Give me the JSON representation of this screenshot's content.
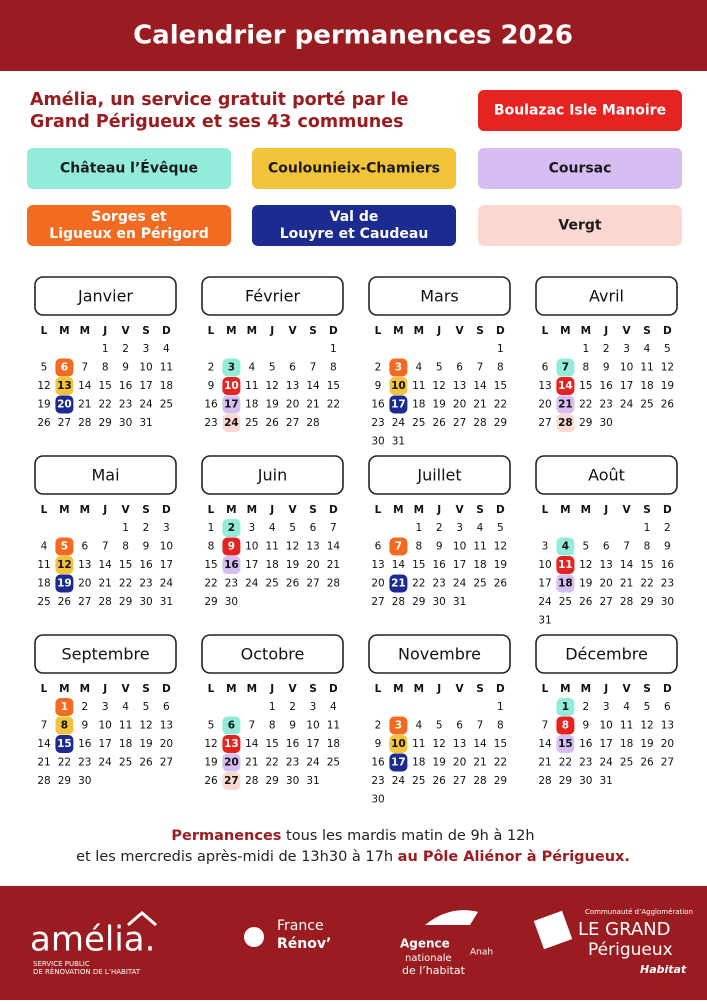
{
  "header": {
    "title": "Calendrier permanences 2026"
  },
  "intro": {
    "lines": [
      "Amélia, un service gratuit porté par le",
      "Grand Périgueux et ses 43 communes"
    ]
  },
  "legend": [
    {
      "lines": [
        "Boulazac Isle Manoire"
      ],
      "color": "#e52421",
      "text_color": "#ffffff"
    },
    {
      "lines": [
        "Château l’Évêque"
      ],
      "color": "#93ecd9",
      "text_color": "#1a1a1a"
    },
    {
      "lines": [
        "Coulounieix-Chamiers"
      ],
      "color": "#f2c43c",
      "text_color": "#1a1a1a"
    },
    {
      "lines": [
        "Coursac"
      ],
      "color": "#d6bdf2",
      "text_color": "#1a1a1a"
    },
    {
      "lines": [
        "Sorges et",
        "Ligueux en Périgord"
      ],
      "color": "#f36b21",
      "text_color": "#ffffff"
    },
    {
      "lines": [
        "Val de",
        "Louyre et Caudeau"
      ],
      "color": "#1b2b8f",
      "text_color": "#ffffff"
    },
    {
      "lines": [
        "Vergt"
      ],
      "color": "#fbd8d2",
      "text_color": "#1a1a1a"
    }
  ],
  "weekdays": [
    "L",
    "M",
    "M",
    "J",
    "V",
    "S",
    "D"
  ],
  "months": [
    {
      "name": "Janvier",
      "rows": [
        [
          null,
          null,
          null,
          1,
          2,
          3,
          4
        ],
        [
          5,
          {
            "value": 6,
            "color": "#f36b21"
          },
          7,
          8,
          9,
          10,
          11
        ],
        [
          12,
          {
            "value": 13,
            "color": "#f2c43c"
          },
          14,
          15,
          16,
          17,
          18
        ],
        [
          19,
          {
            "value": 20,
            "color": "#1b2b8f"
          },
          21,
          22,
          23,
          24,
          25
        ],
        [
          26,
          27,
          28,
          29,
          30,
          31,
          null
        ]
      ]
    },
    {
      "name": "Février",
      "rows": [
        [
          null,
          null,
          null,
          null,
          null,
          null,
          1
        ],
        [
          2,
          {
            "value": 3,
            "color": "#93ecd9"
          },
          4,
          5,
          6,
          7,
          8
        ],
        [
          9,
          {
            "value": 10,
            "color": "#e52421"
          },
          11,
          12,
          13,
          14,
          15
        ],
        [
          16,
          {
            "value": 17,
            "color": "#d6bdf2"
          },
          18,
          19,
          20,
          21,
          22
        ],
        [
          23,
          {
            "value": 24,
            "color": "#fbd8d2"
          },
          25,
          26,
          27,
          28,
          null
        ]
      ]
    },
    {
      "name": "Mars",
      "rows": [
        [
          null,
          null,
          null,
          null,
          null,
          null,
          1
        ],
        [
          2,
          {
            "value": 3,
            "color": "#f36b21"
          },
          4,
          5,
          6,
          7,
          8
        ],
        [
          9,
          {
            "value": 10,
            "color": "#f2c43c"
          },
          11,
          12,
          13,
          14,
          15
        ],
        [
          16,
          {
            "value": 17,
            "color": "#1b2b8f"
          },
          18,
          19,
          20,
          21,
          22
        ],
        [
          23,
          24,
          25,
          26,
          27,
          28,
          29
        ],
        [
          30,
          31,
          null,
          null,
          null,
          null,
          null
        ]
      ]
    },
    {
      "name": "Avril",
      "rows": [
        [
          null,
          null,
          1,
          2,
          3,
          4,
          5
        ],
        [
          6,
          {
            "value": 7,
            "color": "#93ecd9"
          },
          8,
          9,
          10,
          11,
          12
        ],
        [
          13,
          {
            "value": 14,
            "color": "#e52421"
          },
          15,
          16,
          17,
          18,
          19
        ],
        [
          20,
          {
            "value": 21,
            "color": "#d6bdf2"
          },
          22,
          23,
          24,
          25,
          26
        ],
        [
          27,
          {
            "value": 28,
            "color": "#fbd8d2"
          },
          29,
          30,
          null,
          null,
          null
        ]
      ]
    },
    {
      "name": "Mai",
      "rows": [
        [
          null,
          null,
          null,
          null,
          1,
          2,
          3
        ],
        [
          4,
          {
            "value": 5,
            "color": "#f36b21"
          },
          6,
          7,
          8,
          9,
          10
        ],
        [
          11,
          {
            "value": 12,
            "color": "#f2c43c"
          },
          13,
          14,
          15,
          16,
          17
        ],
        [
          18,
          {
            "value": 19,
            "color": "#1b2b8f"
          },
          20,
          21,
          22,
          23,
          24
        ],
        [
          25,
          26,
          27,
          28,
          29,
          30,
          31
        ]
      ]
    },
    {
      "name": "Juin",
      "rows": [
        [
          1,
          {
            "value": 2,
            "color": "#93ecd9"
          },
          3,
          4,
          5,
          6,
          7
        ],
        [
          8,
          {
            "value": 9,
            "color": "#e52421"
          },
          10,
          11,
          12,
          13,
          14
        ],
        [
          15,
          {
            "value": 16,
            "color": "#d6bdf2"
          },
          17,
          18,
          19,
          20,
          21
        ],
        [
          22,
          23,
          24,
          25,
          26,
          27,
          28
        ],
        [
          29,
          30,
          null,
          null,
          null,
          null,
          null
        ]
      ]
    },
    {
      "name": "Juillet",
      "rows": [
        [
          null,
          null,
          1,
          2,
          3,
          4,
          5
        ],
        [
          6,
          {
            "value": 7,
            "color": "#f36b21"
          },
          8,
          9,
          10,
          11,
          12
        ],
        [
          13,
          14,
          15,
          16,
          17,
          18,
          19
        ],
        [
          20,
          {
            "value": 21,
            "color": "#1b2b8f"
          },
          22,
          23,
          24,
          25,
          26
        ],
        [
          27,
          28,
          29,
          30,
          31,
          null,
          null
        ]
      ]
    },
    {
      "name": "Août",
      "rows": [
        [
          null,
          null,
          null,
          null,
          null,
          1,
          2
        ],
        [
          3,
          {
            "value": 4,
            "color": "#93ecd9"
          },
          5,
          6,
          7,
          8,
          9
        ],
        [
          10,
          {
            "value": 11,
            "color": "#e52421"
          },
          12,
          13,
          14,
          15,
          16
        ],
        [
          17,
          {
            "value": 18,
            "color": "#d6bdf2"
          },
          19,
          20,
          21,
          22,
          23
        ],
        [
          24,
          25,
          26,
          27,
          28,
          29,
          30
        ],
        [
          31,
          null,
          null,
          null,
          null,
          null,
          null
        ]
      ]
    },
    {
      "name": "Septembre",
      "rows": [
        [
          null,
          {
            "value": 1,
            "color": "#f36b21"
          },
          2,
          3,
          4,
          5,
          6
        ],
        [
          7,
          {
            "value": 8,
            "color": "#f2c43c"
          },
          9,
          10,
          11,
          12,
          13
        ],
        [
          14,
          {
            "value": 15,
            "color": "#1b2b8f"
          },
          16,
          17,
          18,
          19,
          20
        ],
        [
          21,
          22,
          23,
          24,
          25,
          26,
          27
        ],
        [
          28,
          29,
          30,
          null,
          null,
          null,
          null
        ]
      ]
    },
    {
      "name": "Octobre",
      "rows": [
        [
          null,
          null,
          null,
          1,
          2,
          3,
          4
        ],
        [
          5,
          {
            "value": 6,
            "color": "#93ecd9"
          },
          7,
          8,
          9,
          10,
          11
        ],
        [
          12,
          {
            "value": 13,
            "color": "#e52421"
          },
          14,
          15,
          16,
          17,
          18
        ],
        [
          19,
          {
            "value": 20,
            "color": "#d6bdf2"
          },
          21,
          22,
          23,
          24,
          25
        ],
        [
          26,
          {
            "value": 27,
            "color": "#fbd8d2"
          },
          28,
          29,
          30,
          31,
          null
        ]
      ]
    },
    {
      "name": "Novembre",
      "rows": [
        [
          null,
          null,
          null,
          null,
          null,
          null,
          1
        ],
        [
          2,
          {
            "value": 3,
            "color": "#f36b21"
          },
          4,
          5,
          6,
          7,
          8
        ],
        [
          9,
          {
            "value": 10,
            "color": "#f2c43c"
          },
          11,
          12,
          13,
          14,
          15
        ],
        [
          16,
          {
            "value": 17,
            "color": "#1b2b8f"
          },
          18,
          19,
          20,
          21,
          22
        ],
        [
          23,
          24,
          25,
          26,
          27,
          28,
          29
        ],
        [
          30,
          null,
          null,
          null,
          null,
          null,
          null
        ]
      ]
    },
    {
      "name": "Décembre",
      "rows": [
        [
          null,
          {
            "value": 1,
            "color": "#93ecd9"
          },
          2,
          3,
          4,
          5,
          6
        ],
        [
          7,
          {
            "value": 8,
            "color": "#e52421"
          },
          9,
          10,
          11,
          12,
          13
        ],
        [
          14,
          {
            "value": 15,
            "color": "#d6bdf2"
          },
          16,
          17,
          18,
          19,
          20
        ],
        [
          21,
          22,
          23,
          24,
          25,
          26,
          27
        ],
        [
          28,
          29,
          30,
          31,
          null,
          null,
          null
        ]
      ]
    }
  ],
  "notice": {
    "line1": {
      "bold": "Permanences",
      "text": "tous les mardis matin de 9h à 12h"
    },
    "line2": {
      "text": "et les mercredis après-midi de 13h30 à 17h",
      "bold": "au Pôle Aliénor à Périgueux."
    }
  },
  "footer": {
    "amelia": {
      "name": "amélia.",
      "tagline": [
        "SERVICE PUBLIC",
        "DE RÉNOVATION DE L’HABITAT"
      ]
    },
    "france_renov": {
      "lines": [
        "France",
        "Rénov’"
      ]
    },
    "anah": {
      "lines": [
        "Agence",
        "nationale",
        "de l’habitat"
      ],
      "short": "Anah"
    },
    "grand_perigueux": {
      "top": "Communauté d’Agglomération",
      "lines": [
        "LE GRAND",
        "Périgueux"
      ],
      "sub": "Habitat"
    }
  }
}
